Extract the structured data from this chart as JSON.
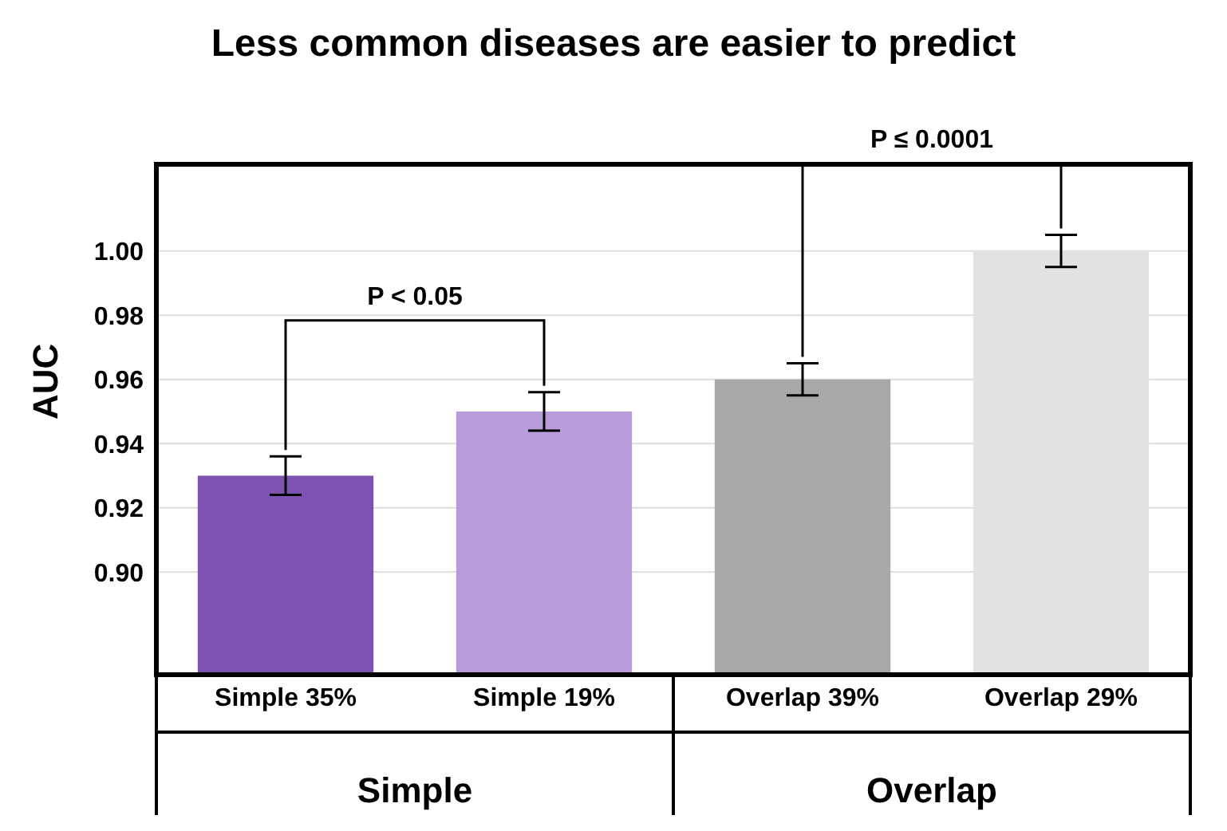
{
  "chart_data": {
    "type": "bar",
    "title": "Less common diseases are easier to predict",
    "ylabel": "AUC",
    "categories": [
      "Simple 35%",
      "Simple 19%",
      "Overlap 39%",
      "Overlap 29%"
    ],
    "values": [
      0.93,
      0.95,
      0.96,
      1.0
    ],
    "errors": [
      0.006,
      0.006,
      0.005,
      0.005
    ],
    "colors": [
      "#7d52b0",
      "#b89bd9",
      "#a8a8a8",
      "#e2e2e2"
    ],
    "ylim": [
      0.868,
      1.027
    ],
    "yticks": [
      {
        "value": 0.9,
        "label": "0.90"
      },
      {
        "value": 0.92,
        "label": "0.92"
      },
      {
        "value": 0.94,
        "label": "0.94"
      },
      {
        "value": 0.96,
        "label": "0.96"
      },
      {
        "value": 0.98,
        "label": "0.98"
      },
      {
        "value": 1.0,
        "label": "1.00"
      }
    ],
    "grid": "y",
    "annotations": [
      "P < 0.05",
      "P ≤ 0.0001",
      "Simple",
      "Overlap"
    ]
  }
}
